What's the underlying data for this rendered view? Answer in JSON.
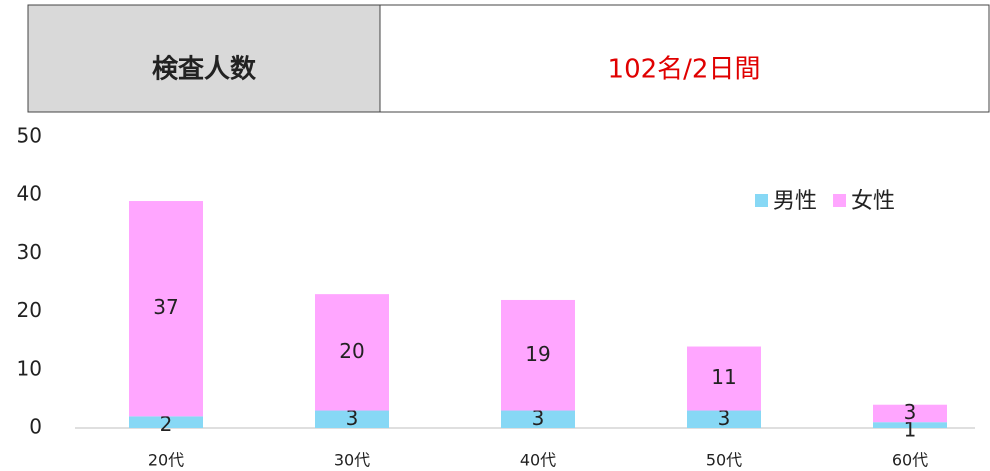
{
  "header": {
    "label": "検査人数",
    "value": "102名/2日間"
  },
  "chart_data": {
    "type": "bar",
    "stacked": true,
    "categories": [
      "20代",
      "30代",
      "40代",
      "50代",
      "60代"
    ],
    "series": [
      {
        "name": "男性",
        "color": "#87d8f5",
        "values": [
          2,
          3,
          3,
          3,
          1
        ]
      },
      {
        "name": "女性",
        "color": "#ffa6ff",
        "values": [
          37,
          20,
          19,
          11,
          3
        ]
      }
    ],
    "ylim": [
      0,
      50
    ],
    "yticks": [
      0,
      10,
      20,
      30,
      40,
      50
    ],
    "grid": false,
    "legend": "upper right"
  }
}
